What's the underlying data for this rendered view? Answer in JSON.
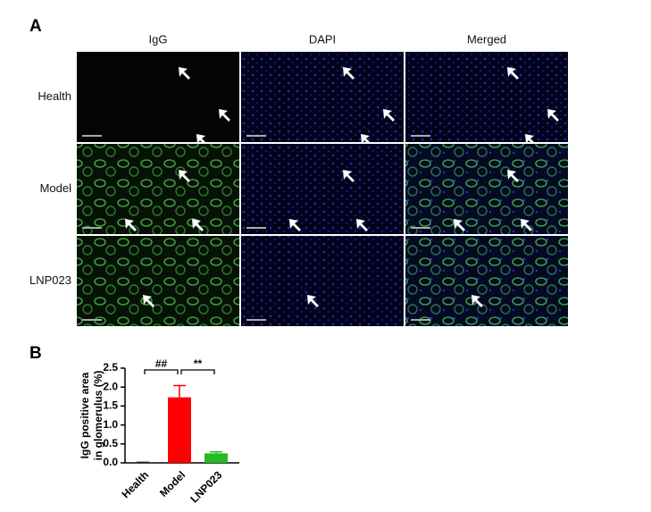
{
  "panel_a": {
    "label": "A",
    "columns": [
      "IgG",
      "DAPI",
      "Merged"
    ],
    "rows": [
      "Health",
      "Model",
      "LNP023"
    ]
  },
  "chart_data": {
    "type": "bar",
    "label": "B",
    "ylabel": [
      "IgG positive area",
      "in glomerulus (%)"
    ],
    "categories": [
      "Health",
      "Model",
      "LNP023"
    ],
    "values": [
      0.01,
      1.73,
      0.25
    ],
    "errors": [
      0.005,
      0.31,
      0.04
    ],
    "colors": [
      "#222222",
      "#ff0000",
      "#22bb22"
    ],
    "annotations": [
      "##",
      "**"
    ],
    "ylim": [
      0,
      2.5
    ],
    "yticks": [
      {
        "value": 0,
        "label": "0.0"
      },
      0.5,
      {
        "value": 1,
        "label": "1.0"
      },
      1.5,
      {
        "value": 2,
        "label": "2.0"
      },
      2.5
    ]
  }
}
